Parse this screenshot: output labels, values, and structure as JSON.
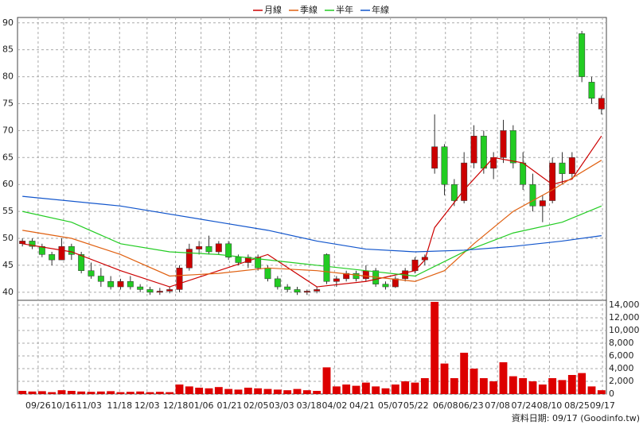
{
  "chart_data": {
    "type": "candlestick",
    "series": [
      {
        "name": "月線",
        "color": "#cc0000",
        "x": [
          0,
          5,
          10,
          15,
          20,
          25,
          30,
          35,
          40,
          41,
          42,
          45,
          48,
          51,
          54,
          56,
          59
        ],
        "values": [
          49,
          47.5,
          44,
          41,
          44,
          47,
          41,
          42,
          44,
          46,
          52,
          59,
          65,
          64,
          60,
          61,
          69
        ]
      },
      {
        "name": "季線",
        "color": "#e06010",
        "x": [
          0,
          5,
          10,
          15,
          20,
          25,
          30,
          35,
          40,
          43,
          46,
          50,
          54,
          59
        ],
        "values": [
          51.5,
          50,
          47,
          43,
          43.5,
          44.5,
          44,
          43,
          42,
          44,
          49,
          55,
          59,
          64.5
        ]
      },
      {
        "name": "半年",
        "color": "#22cc22",
        "x": [
          0,
          5,
          10,
          15,
          20,
          25,
          30,
          35,
          40,
          45,
          50,
          55,
          59
        ],
        "values": [
          55,
          53,
          49,
          47.5,
          47,
          46,
          45,
          44,
          43,
          47.5,
          51,
          53,
          56
        ]
      },
      {
        "name": "年線",
        "color": "#1155cc",
        "x": [
          0,
          10,
          20,
          25,
          30,
          35,
          40,
          45,
          50,
          55,
          59
        ],
        "values": [
          57.8,
          56,
          53,
          51.5,
          49.5,
          48,
          47.5,
          47.8,
          48.5,
          49.5,
          50.5
        ]
      }
    ],
    "open": [
      49,
      49.5,
      48.5,
      47,
      46,
      48.5,
      47,
      44,
      43,
      42,
      41,
      42,
      41,
      40.5,
      40,
      40.2,
      40.5,
      44.5,
      48,
      48.5,
      47.5,
      49,
      46.5,
      45.5,
      46.5,
      44.5,
      42.5,
      41,
      40.5,
      40,
      40.2,
      47,
      42,
      42.5,
      43.5,
      42.5,
      44,
      41.5,
      41,
      42.5,
      44,
      46,
      63,
      67,
      60,
      57,
      64,
      69,
      63,
      65,
      70,
      64,
      60,
      56,
      57,
      64,
      62,
      88,
      79,
      74
    ],
    "high": [
      50,
      50,
      49,
      47.5,
      50,
      49,
      47.5,
      45.5,
      44.5,
      43,
      42.5,
      43,
      41.5,
      41,
      40.8,
      41,
      45,
      49,
      49.5,
      50.5,
      49.5,
      49.5,
      47,
      47,
      47,
      45,
      43,
      41.5,
      41,
      40.5,
      41,
      47.2,
      43,
      44,
      44,
      45,
      44.5,
      42,
      43,
      44.5,
      46.5,
      47,
      73,
      67.5,
      61,
      66,
      71,
      70,
      66,
      72,
      71,
      66,
      62,
      58,
      65,
      66,
      66,
      88.5,
      80,
      76.5
    ],
    "low": [
      48.5,
      48,
      46.5,
      45,
      46,
      46,
      43.5,
      42.5,
      41,
      40.5,
      40.5,
      40.5,
      40,
      39.5,
      39.5,
      39.8,
      40,
      44,
      47,
      47,
      47,
      46,
      45,
      44.5,
      44,
      42,
      40.5,
      40,
      39.5,
      39.5,
      39.8,
      41.5,
      41,
      42,
      42,
      42,
      41,
      40.5,
      40.8,
      42,
      43.5,
      45,
      62,
      58,
      56,
      56.5,
      63,
      62,
      61,
      64,
      63,
      59,
      55,
      53,
      56.5,
      60,
      61,
      79,
      75,
      73
    ],
    "close": [
      49.5,
      48.5,
      47,
      46,
      48.5,
      47,
      44,
      43,
      42,
      41,
      42,
      41,
      40.5,
      40,
      40.2,
      40.5,
      44.5,
      48,
      48.5,
      47.5,
      49,
      46.5,
      45.5,
      46.5,
      44.5,
      42.5,
      41,
      40.5,
      40,
      40.2,
      40.5,
      42,
      42.5,
      43.5,
      42.5,
      44,
      41.5,
      41,
      42.5,
      44,
      46,
      46.5,
      67,
      60,
      57,
      64,
      69,
      63,
      65,
      70,
      64,
      60,
      56,
      57,
      64,
      62,
      65,
      80,
      76,
      76
    ],
    "volume": [
      500,
      400,
      450,
      300,
      600,
      500,
      400,
      350,
      400,
      450,
      300,
      350,
      400,
      300,
      350,
      300,
      1500,
      1200,
      1000,
      900,
      1100,
      800,
      700,
      1000,
      900,
      800,
      700,
      600,
      800,
      600,
      500,
      4200,
      1200,
      1500,
      1300,
      1800,
      1200,
      900,
      1500,
      2000,
      1800,
      2500,
      14500,
      4800,
      2500,
      6500,
      4000,
      2500,
      2000,
      5000,
      2800,
      2500,
      2000,
      1500,
      2500,
      2200,
      3000,
      3300,
      1200,
      600
    ],
    "up_color": "#cc0000",
    "down_color": "#22cc22",
    "volume_color": "#dd0000",
    "xlim": [
      -0.5,
      59.5
    ],
    "xticks": [
      {
        "value": 1.6,
        "label": "09/26"
      },
      {
        "value": 4.2,
        "label": "10/16"
      },
      {
        "value": 6.8,
        "label": "11/03"
      },
      {
        "value": 9.9,
        "label": "11/18"
      },
      {
        "value": 12.7,
        "label": "12/03"
      },
      {
        "value": 15.6,
        "label": "12/18"
      },
      {
        "value": 18.2,
        "label": "01/06"
      },
      {
        "value": 21.1,
        "label": "01/21"
      },
      {
        "value": 23.8,
        "label": "02/05"
      },
      {
        "value": 26.4,
        "label": "03/03"
      },
      {
        "value": 29.2,
        "label": "03/18"
      },
      {
        "value": 31.8,
        "label": "04/02"
      },
      {
        "value": 34.6,
        "label": "04/21"
      },
      {
        "value": 37.5,
        "label": "05/07"
      },
      {
        "value": 40.1,
        "label": "05/22"
      },
      {
        "value": 43.1,
        "label": "06/08"
      },
      {
        "value": 45.7,
        "label": "06/23"
      },
      {
        "value": 48.4,
        "label": "07/08"
      },
      {
        "value": 51.1,
        "label": "07/24"
      },
      {
        "value": 53.7,
        "label": "08/10"
      },
      {
        "value": 56.5,
        "label": "08/25"
      },
      {
        "value": 59.1,
        "label": "09/17"
      }
    ],
    "ylim": [
      38.5,
      91
    ],
    "yticks": [
      40,
      45,
      50,
      55,
      60,
      65,
      70,
      75,
      80,
      85,
      90
    ],
    "volume_ylim": [
      0,
      14750
    ],
    "volume_yticks": [
      0,
      {
        "value": 2000,
        "label": "2,000"
      },
      {
        "value": 4000,
        "label": "4,000"
      },
      {
        "value": 6000,
        "label": "6,000"
      },
      {
        "value": 8000,
        "label": "8,000"
      },
      {
        "value": 10000,
        "label": "10,000"
      },
      {
        "value": 12000,
        "label": "12,000"
      },
      {
        "value": 14000,
        "label": "14,000"
      }
    ],
    "note": "資料日期: 09/17 (Goodinfo.tw)"
  }
}
